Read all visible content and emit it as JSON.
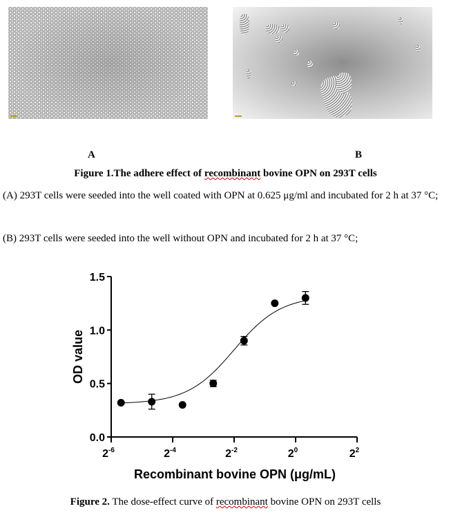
{
  "figure1": {
    "panel_a_label": "A",
    "panel_b_label": "B",
    "caption_prefix": "Figure 1.",
    "caption_text_1": "The adhere effect of ",
    "caption_text_2": "recombinant",
    "caption_text_3": " bovine OPN on 293T cells",
    "desc_a": "(A) 293T cells were seeded into the well coated with OPN at 0.625 μg/ml and incubated for 2 h at 37 °C;",
    "desc_b": "(B)  293T cells were seeded into the well without OPN and incubated for 2 h at 37 °C;"
  },
  "chart_data": {
    "type": "scatter",
    "xlabel": "Recombinant bovine OPN (μg/mL)",
    "ylabel": "OD value",
    "xscale": "log2",
    "xlim": [
      0.015625,
      4
    ],
    "ylim": [
      0,
      1.5
    ],
    "xticks": [
      {
        "base": "2",
        "exp": "-6"
      },
      {
        "base": "2",
        "exp": "-4"
      },
      {
        "base": "2",
        "exp": "-2"
      },
      {
        "base": "2",
        "exp": "0"
      },
      {
        "base": "2",
        "exp": "2"
      }
    ],
    "yticks": [
      "0.0",
      "0.5",
      "1.0",
      "1.5"
    ],
    "fit": "sigmoidal curve",
    "x": [
      0.0195,
      0.039,
      0.078,
      0.156,
      0.3125,
      0.625,
      1.25
    ],
    "y": [
      0.32,
      0.33,
      0.3,
      0.5,
      0.9,
      1.25,
      1.3
    ],
    "error": [
      0.01,
      0.07,
      0.01,
      0.03,
      0.04,
      0.01,
      0.06
    ],
    "color": "#000000"
  },
  "figure2": {
    "caption_prefix": "Figure 2.",
    "caption_text_1": " The dose-effect curve of ",
    "caption_text_2": "recombinant",
    "caption_text_3": " bovine OPN on 293T cells"
  }
}
